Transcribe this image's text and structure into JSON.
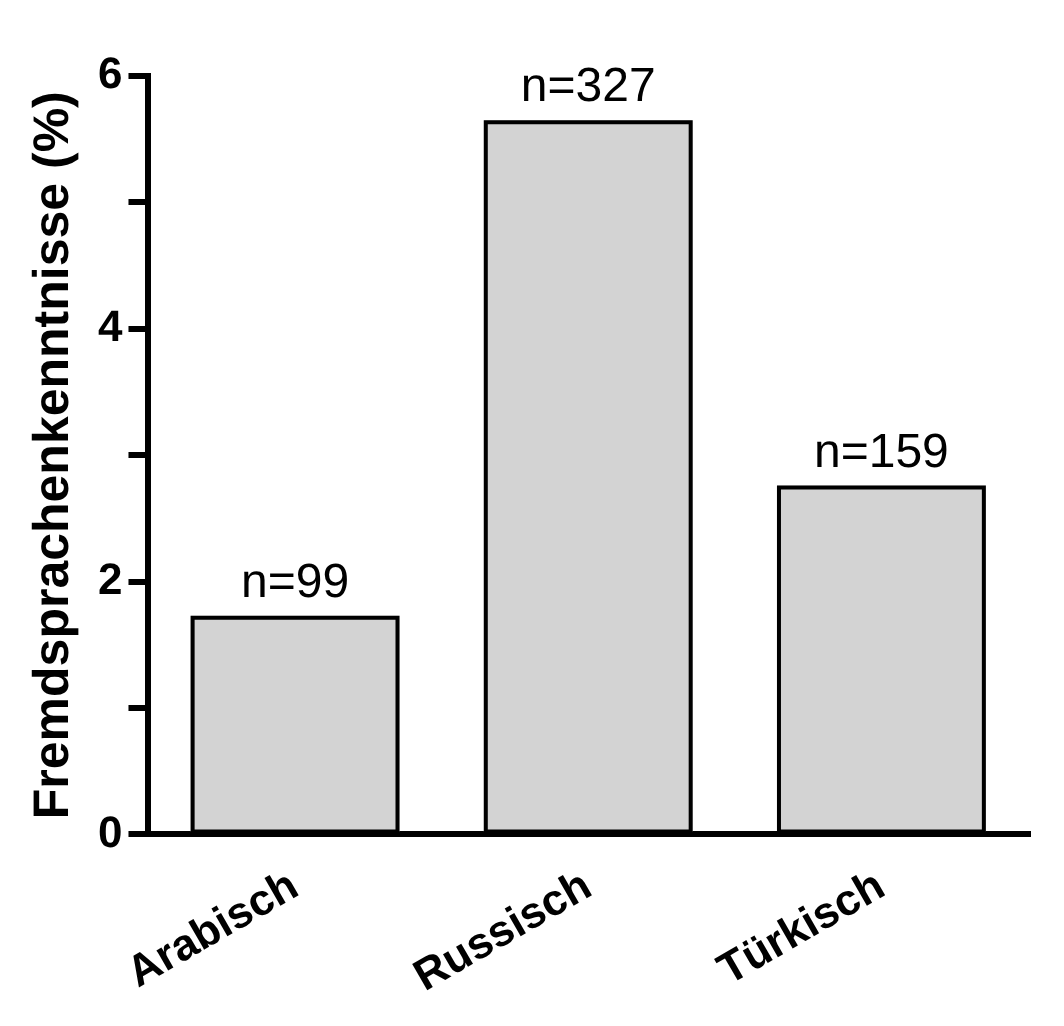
{
  "chart_data": {
    "type": "bar",
    "ylabel": "Fremdsprachenkenntnisse (%)",
    "categories": [
      "Arabisch",
      "Russisch",
      "Türkisch"
    ],
    "values": [
      1.73,
      5.65,
      2.76
    ],
    "color": "#d3d3d3",
    "annotations": [
      {
        "text": "n=99",
        "x": "Arabisch",
        "y": 1.73
      },
      {
        "text": "n=327",
        "x": "Russisch",
        "y": 5.65
      },
      {
        "text": "n=159",
        "x": "Türkisch",
        "y": 2.76
      }
    ],
    "ylim": [
      0,
      6
    ],
    "yticks": [
      0,
      {
        "value": 1,
        "label": null
      },
      2,
      {
        "value": 3,
        "label": null
      },
      4,
      {
        "value": 5,
        "label": null
      },
      6
    ],
    "grid": false,
    "legend": false
  }
}
